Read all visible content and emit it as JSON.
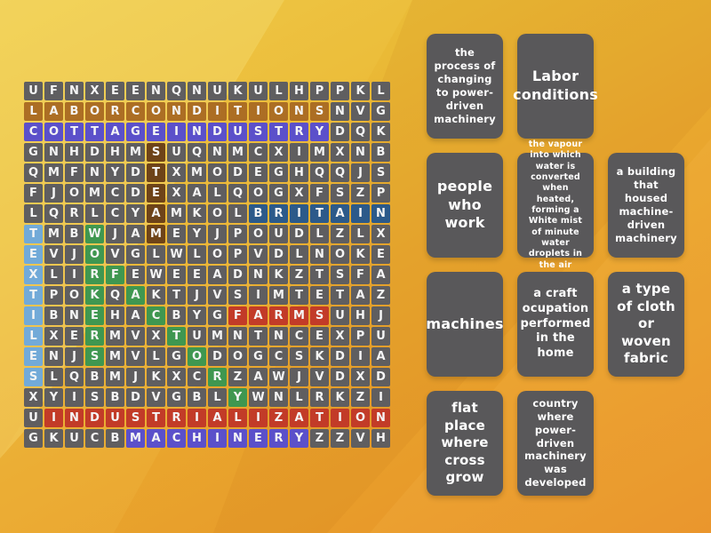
{
  "colors": {
    "background_top": "#edc844",
    "background_bottom": "#e78f26",
    "cell_bg": "#5f5e60",
    "card_bg": "#59585a",
    "letter": "#f5f5f5"
  },
  "grid": {
    "rows": [
      "UFNXEENQNUKULHPPKL",
      "LABORCONDITIONSNVG",
      "COTTAGEINDUSTRYDQK",
      "GNHDHMSUQNMCXIMXNB",
      "QMFNYDTXMODEGHQQJS",
      "FJOMCDEXALQOGXFSZP",
      "LQRLCYAMKOLBRITAIN",
      "TMBWJAMEYJPOUDLZLX",
      "EVJOVGLWLOPVDLNOKE",
      "XLIRFEWEEADNKZTSFA",
      "TPOKQAKTJVSIMTETAZ",
      "IBNEHACBYGFARMSUHJ",
      "LXERMVXTUMNTNCEXPU",
      "ENJSMVLGODOGCSKDIA",
      "SLQBMJKXCRZAWJVDXD",
      "XYISBDVGBLYWNLRKZI",
      "UINDUSTRIALIZATION",
      "GKUCBMACHINERYZZVH"
    ],
    "highlights": [
      {
        "word": "LABORCONDITIONS",
        "color": "#ac6e24",
        "start": [
          2,
          1
        ],
        "dir": "h",
        "len": 15
      },
      {
        "word": "COTTAGEINDUSTRY",
        "color": "#5b50ca",
        "start": [
          3,
          1
        ],
        "dir": "h",
        "len": 15
      },
      {
        "word": "STEAM",
        "color": "#6e4318",
        "start": [
          4,
          7
        ],
        "dir": "v",
        "len": 5
      },
      {
        "word": "BRITAIN",
        "color": "#2c5a8a",
        "start": [
          7,
          12
        ],
        "dir": "h",
        "len": 7
      },
      {
        "word": "TEXTILES",
        "color": "#72aad8",
        "start": [
          8,
          1
        ],
        "dir": "v",
        "len": 8
      },
      {
        "word": "WORKERS",
        "color": "#3f9750",
        "start": [
          8,
          4
        ],
        "dir": "v",
        "len": 7
      },
      {
        "word": "FACTORY",
        "color": "#3f9750",
        "start": [
          10,
          5
        ],
        "dir": "d",
        "len": 7
      },
      {
        "word": "FARMS",
        "color": "#c23b28",
        "start": [
          12,
          11
        ],
        "dir": "h",
        "len": 5
      },
      {
        "word": "INDUSTRIALIZATION",
        "color": "#c23b28",
        "start": [
          17,
          2
        ],
        "dir": "h",
        "len": 17
      },
      {
        "word": "MACHINERY",
        "color": "#5b50ca",
        "start": [
          18,
          6
        ],
        "dir": "h",
        "len": 9
      }
    ]
  },
  "clues": {
    "cards": [
      {
        "text": "the process of changing to power-driven machinery",
        "row": 1,
        "col": 1
      },
      {
        "text": "Labor conditions",
        "row": 1,
        "col": 2
      },
      {
        "text": "people who work",
        "row": 2,
        "col": 1
      },
      {
        "text": "the vapour into which water is converted when heated, forming a White mist of minute water droplets in the air",
        "row": 2,
        "col": 2
      },
      {
        "text": "a building that housed machine-driven machinery",
        "row": 2,
        "col": 3
      },
      {
        "text": "machines",
        "row": 3,
        "col": 1
      },
      {
        "text": "a craft ocupation performed in the home",
        "row": 3,
        "col": 2
      },
      {
        "text": "a type of cloth or woven fabric",
        "row": 3,
        "col": 3
      },
      {
        "text": "flat place where cross grow",
        "row": 4,
        "col": 1
      },
      {
        "text": "country where power-driven machinery was developed",
        "row": 4,
        "col": 2
      }
    ]
  }
}
